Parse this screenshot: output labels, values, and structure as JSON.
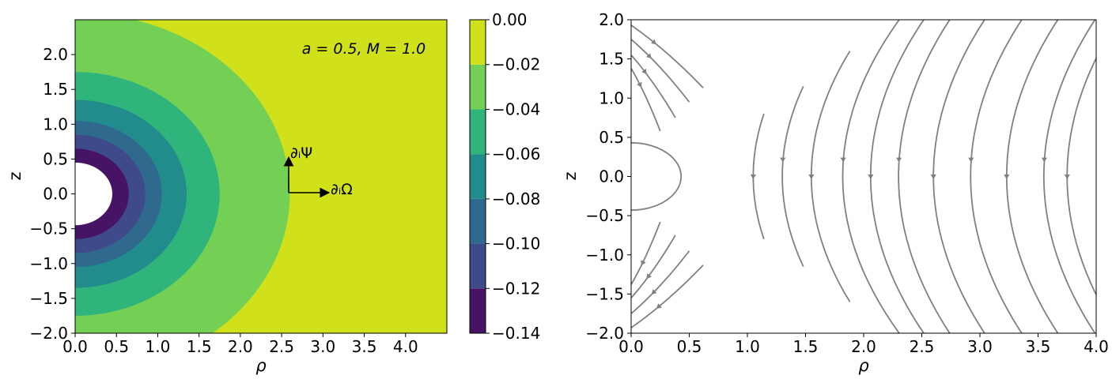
{
  "chart_data": [
    {
      "type": "heatmap",
      "subtype": "filled-contour",
      "xlabel": "ρ",
      "ylabel": "z",
      "xlim": [
        0.0,
        4.5
      ],
      "ylim": [
        -2.0,
        2.5
      ],
      "xticks": [
        "0.0",
        "0.5",
        "1.0",
        "1.5",
        "2.0",
        "2.5",
        "3.0",
        "3.5",
        "4.0"
      ],
      "yticks": [
        "−2.0",
        "−1.5",
        "−1.0",
        "−0.5",
        "0.0",
        "0.5",
        "1.0",
        "1.5",
        "2.0"
      ],
      "annotation": "a = 0.5,  M = 1.0",
      "excised_radius": 0.45,
      "contour_levels": [
        {
          "range": [
            -0.14,
            -0.12
          ],
          "color": "#471365",
          "boundary_radius": 0.65
        },
        {
          "range": [
            -0.12,
            -0.1
          ],
          "color": "#3e4a89",
          "boundary_radius": 0.85
        },
        {
          "range": [
            -0.1,
            -0.08
          ],
          "color": "#30698e",
          "boundary_radius": 1.05
        },
        {
          "range": [
            -0.08,
            -0.06
          ],
          "color": "#228c8d",
          "boundary_radius": 1.35
        },
        {
          "range": [
            -0.06,
            -0.04
          ],
          "color": "#2fb47c",
          "boundary_radius": 1.75
        },
        {
          "range": [
            -0.04,
            -0.02
          ],
          "color": "#73d055",
          "boundary_radius": 2.6
        },
        {
          "range": [
            -0.02,
            0.0
          ],
          "color": "#d0e11c"
        }
      ],
      "colorbar": {
        "ticks": [
          "0.00",
          "−0.02",
          "−0.04",
          "−0.06",
          "−0.08",
          "−0.10",
          "−0.12",
          "−0.14"
        ],
        "range": [
          -0.14,
          0.0
        ]
      },
      "vectors": [
        {
          "label": "∂ᵢΨ",
          "direction": "up"
        },
        {
          "label": "∂ᵢΩ",
          "direction": "right"
        }
      ]
    },
    {
      "type": "line",
      "subtype": "streamplot",
      "xlabel": "ρ",
      "ylabel": "z",
      "xlim": [
        0.0,
        4.0
      ],
      "ylim": [
        -2.0,
        2.0
      ],
      "xticks": [
        "0.0",
        "0.5",
        "1.0",
        "1.5",
        "2.0",
        "2.5",
        "3.0",
        "3.5",
        "4.0"
      ],
      "yticks": [
        "−2.0",
        "−1.5",
        "−1.0",
        "−0.5",
        "0.0",
        "0.5",
        "1.0",
        "1.5",
        "2.0"
      ],
      "line_color": "#808080",
      "horizon_radius": 0.43,
      "streamlines": [
        {
          "vertex_x": 1.05,
          "tip_z": 0.8
        },
        {
          "vertex_x": 1.3,
          "tip_z": 1.15
        },
        {
          "vertex_x": 1.55,
          "tip_z": 1.6
        },
        {
          "vertex_x": 1.82,
          "tip_z": 2.0
        },
        {
          "vertex_x": 2.06,
          "tip_z": 2.0
        },
        {
          "vertex_x": 2.3,
          "tip_z": 2.0
        },
        {
          "vertex_x": 2.6,
          "tip_z": 2.0
        },
        {
          "vertex_x": 2.92,
          "tip_z": 2.0
        },
        {
          "vertex_x": 3.23,
          "tip_z": 2.0
        },
        {
          "vertex_x": 3.55,
          "tip_z": 2.0
        },
        {
          "vertex_x": 3.75,
          "tip_z": 2.0
        }
      ],
      "corner_streamlines": [
        {
          "z0": 1.93,
          "x1": 0.62
        },
        {
          "z0": 1.75,
          "x1": 0.5
        },
        {
          "z0": 1.55,
          "x1": 0.38
        },
        {
          "z0": 1.38,
          "x1": 0.25
        }
      ]
    }
  ]
}
